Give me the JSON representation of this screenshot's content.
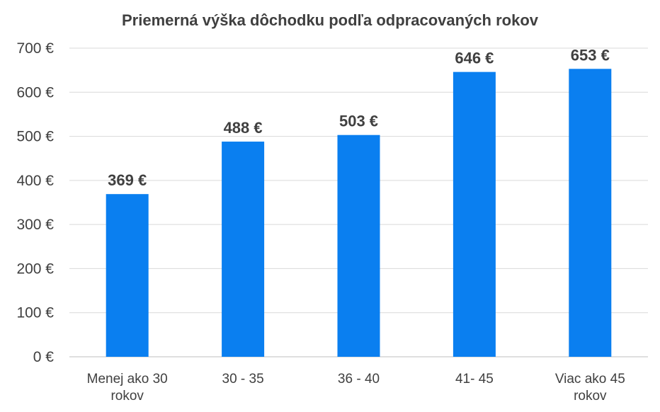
{
  "chart_data": {
    "type": "bar",
    "title": "Priemerná výška dôchodku podľa odpracovaných rokov",
    "categories": [
      [
        "Menej ako 30",
        "rokov"
      ],
      [
        "30 - 35"
      ],
      [
        "36 - 40"
      ],
      [
        "41- 45"
      ],
      [
        "Viac ako 45",
        "rokov"
      ]
    ],
    "values": [
      369,
      488,
      503,
      646,
      653
    ],
    "value_labels": [
      "369 €",
      "488 €",
      "503 €",
      "646 €",
      "653 €"
    ],
    "y_ticks": [
      0,
      100,
      200,
      300,
      400,
      500,
      600,
      700
    ],
    "y_tick_labels": [
      "0 €",
      "100 €",
      "200 €",
      "300 €",
      "400 €",
      "500 €",
      "600 €",
      "700 €"
    ],
    "ylim": [
      0,
      700
    ],
    "grid": true,
    "legend": "none",
    "bar_color": "#0a7ff0"
  }
}
